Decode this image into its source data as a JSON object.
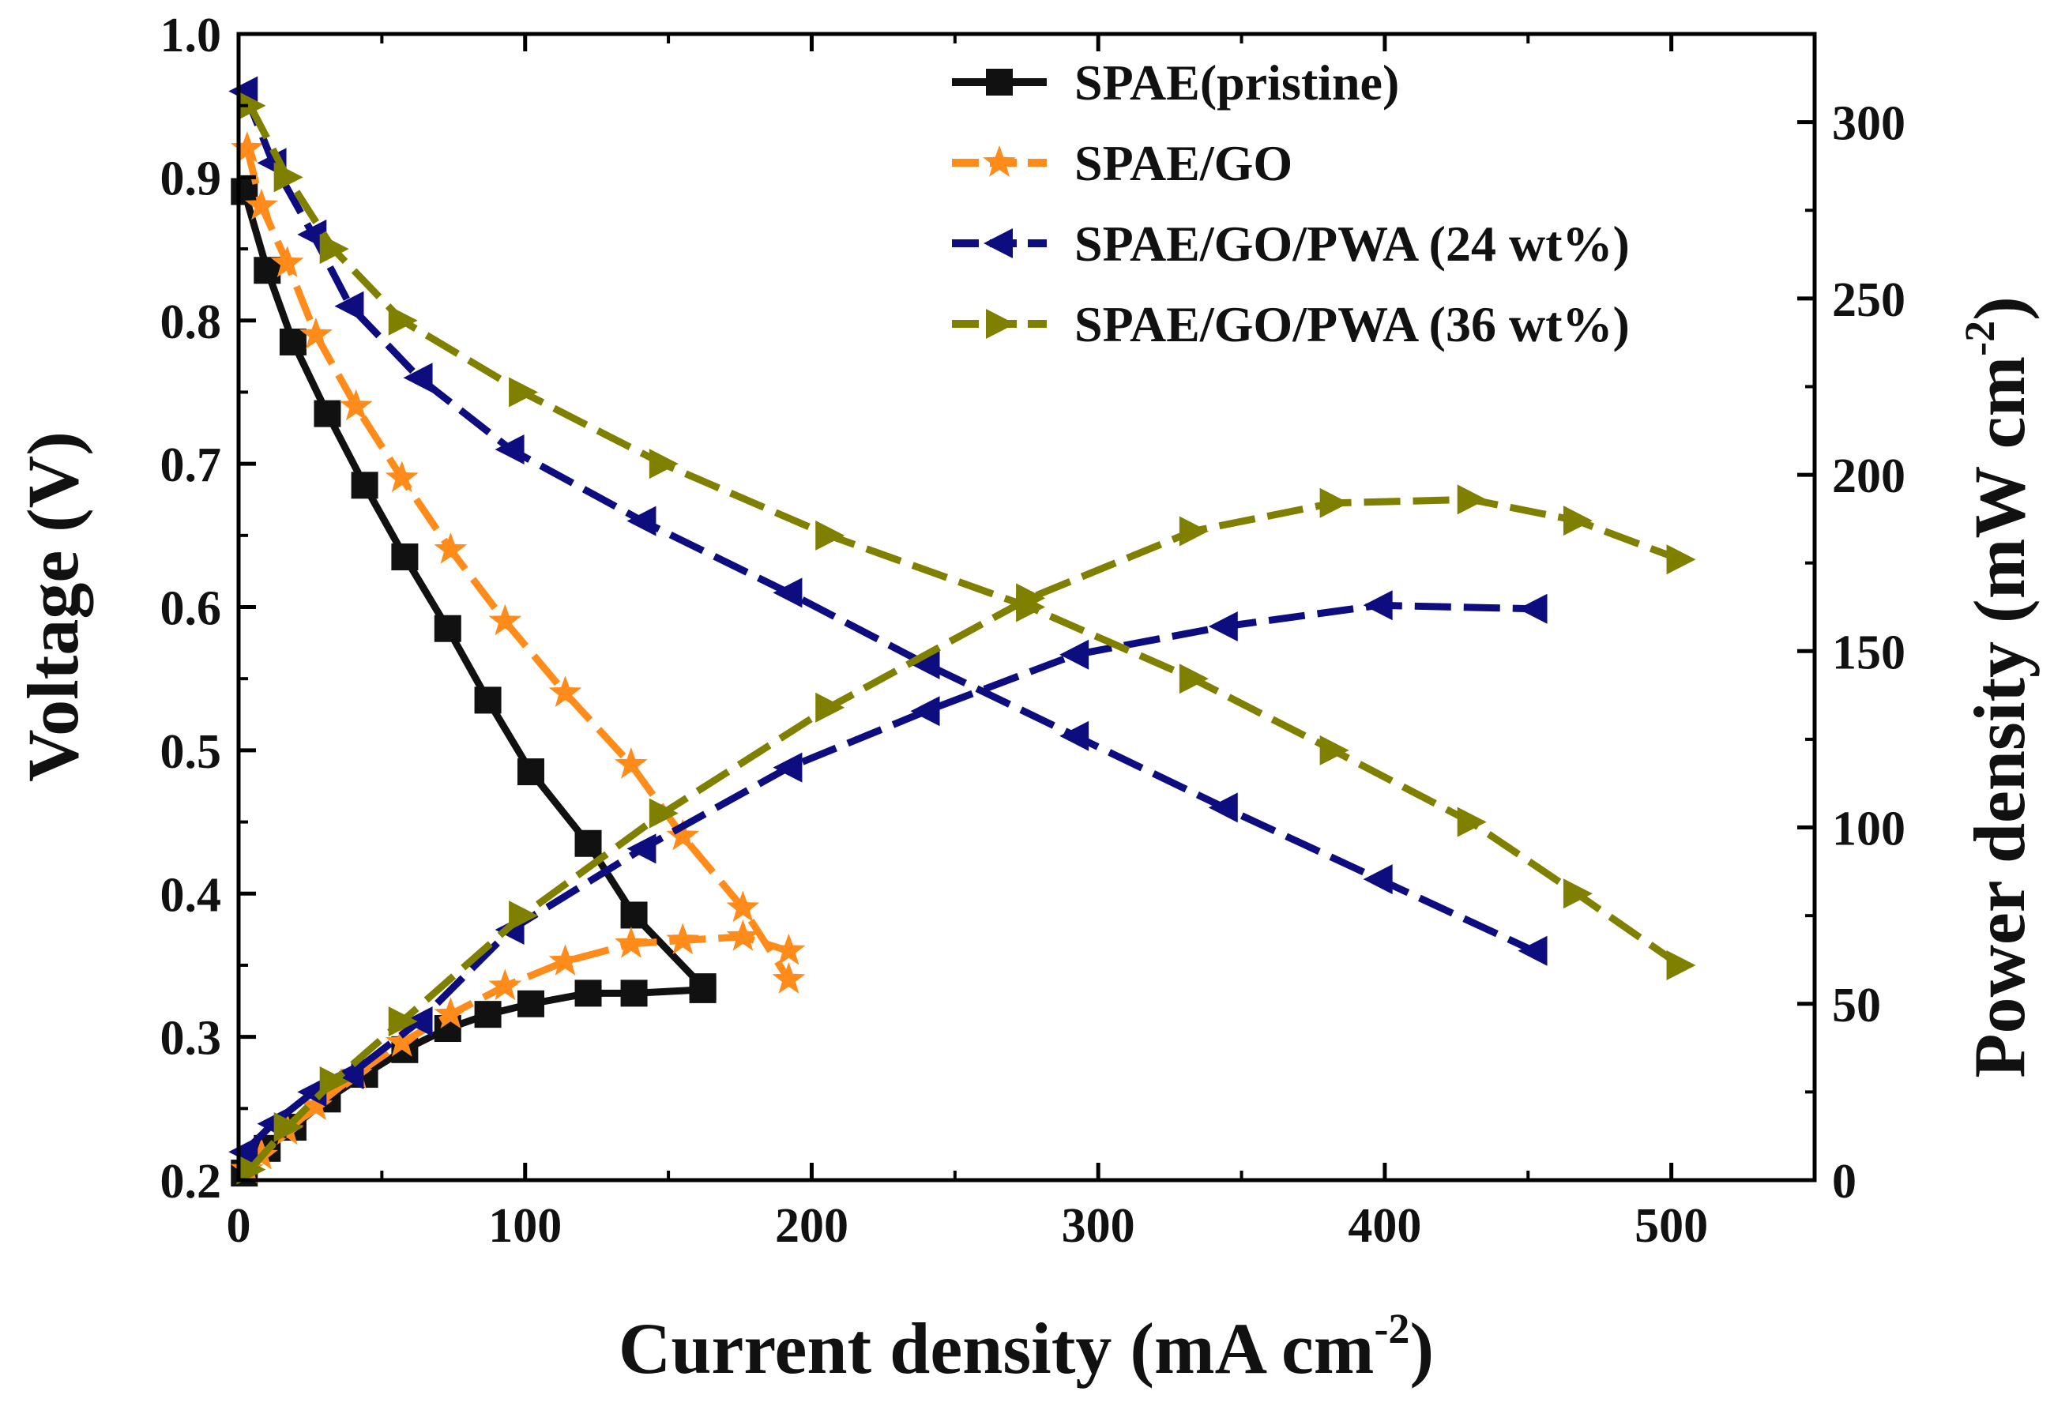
{
  "chart_data": {
    "type": "line",
    "xlabel": "Current density (mA cm",
    "xlabel_sup": "-2",
    "xlabel_close": ")",
    "ylabel_left": "Voltage (V)",
    "ylabel_right": "Power density (mW cm",
    "ylabel_right_sup": "-2",
    "ylabel_right_close": ")",
    "x_range": [
      0,
      550
    ],
    "y_left_range": [
      0.2,
      1.0
    ],
    "y_right_range": [
      0,
      325
    ],
    "x_ticks": [
      "0",
      "100",
      "200",
      "300",
      "400",
      "500"
    ],
    "y_left_ticks": [
      "0.2",
      "0.3",
      "0.4",
      "0.5",
      "0.6",
      "0.7",
      "0.8",
      "0.9",
      "1.0"
    ],
    "y_right_ticks": [
      "0",
      "50",
      "100",
      "150",
      "200",
      "250",
      "300"
    ],
    "grid": false,
    "legend_position": "top-right",
    "series": [
      {
        "name": "SPAE(pristine)",
        "color": "#111111",
        "marker": "square",
        "line_style": "solid",
        "voltage": {
          "x": [
            2,
            10,
            19,
            31,
            44,
            58,
            73,
            87,
            102,
            122,
            138,
            162
          ],
          "y": [
            0.89,
            0.835,
            0.785,
            0.735,
            0.685,
            0.635,
            0.585,
            0.535,
            0.485,
            0.435,
            0.385,
            0.335
          ]
        },
        "power": {
          "x": [
            2,
            10,
            19,
            31,
            44,
            58,
            73,
            87,
            102,
            122,
            138,
            162
          ],
          "y": [
            2,
            9,
            15,
            23,
            30,
            37,
            43,
            47,
            50,
            53,
            53,
            54
          ]
        }
      },
      {
        "name": "SPAE/GO",
        "color": "#ff8c1a",
        "marker": "star",
        "line_style": "dash",
        "voltage": {
          "x": [
            3,
            8,
            17,
            27,
            41,
            57,
            74,
            93,
            114,
            137,
            155,
            176,
            192
          ],
          "y": [
            0.92,
            0.88,
            0.84,
            0.79,
            0.74,
            0.69,
            0.64,
            0.59,
            0.54,
            0.49,
            0.44,
            0.39,
            0.34
          ]
        },
        "power": {
          "x": [
            3,
            8,
            17,
            27,
            41,
            57,
            74,
            93,
            114,
            137,
            155,
            176,
            192
          ],
          "y": [
            3,
            7,
            14,
            21,
            30,
            39,
            47,
            55,
            62,
            67,
            68,
            69,
            65
          ]
        }
      },
      {
        "name": "SPAE/GO/PWA (24 wt%)",
        "color": "#0d0d80",
        "marker": "triangle-left",
        "line_style": "dash",
        "voltage": {
          "x": [
            2,
            12,
            26,
            39,
            63,
            95,
            141,
            192,
            240,
            292,
            344,
            398,
            452
          ],
          "y": [
            0.96,
            0.91,
            0.86,
            0.81,
            0.76,
            0.71,
            0.66,
            0.61,
            0.56,
            0.51,
            0.46,
            0.41,
            0.36
          ]
        },
        "power": {
          "x": [
            2,
            12,
            26,
            39,
            63,
            95,
            141,
            192,
            240,
            292,
            344,
            398,
            452
          ],
          "y": [
            8,
            16,
            25,
            30,
            45,
            71,
            94,
            117,
            133,
            149,
            157,
            163,
            162
          ]
        }
      },
      {
        "name": "SPAE/GO/PWA (36 wt%)",
        "color": "#808000",
        "marker": "triangle-right",
        "line_style": "dash",
        "voltage": {
          "x": [
            4,
            17,
            33,
            57,
            99,
            148,
            206,
            276,
            333,
            382,
            430,
            467,
            503
          ],
          "y": [
            0.95,
            0.9,
            0.85,
            0.8,
            0.75,
            0.7,
            0.65,
            0.6,
            0.55,
            0.5,
            0.45,
            0.4,
            0.35
          ]
        },
        "power": {
          "x": [
            4,
            17,
            33,
            57,
            99,
            148,
            206,
            276,
            333,
            382,
            430,
            467,
            503
          ],
          "y": [
            3,
            15,
            28,
            45,
            75,
            104,
            134,
            165,
            184,
            192,
            193,
            187,
            176
          ]
        }
      }
    ]
  }
}
